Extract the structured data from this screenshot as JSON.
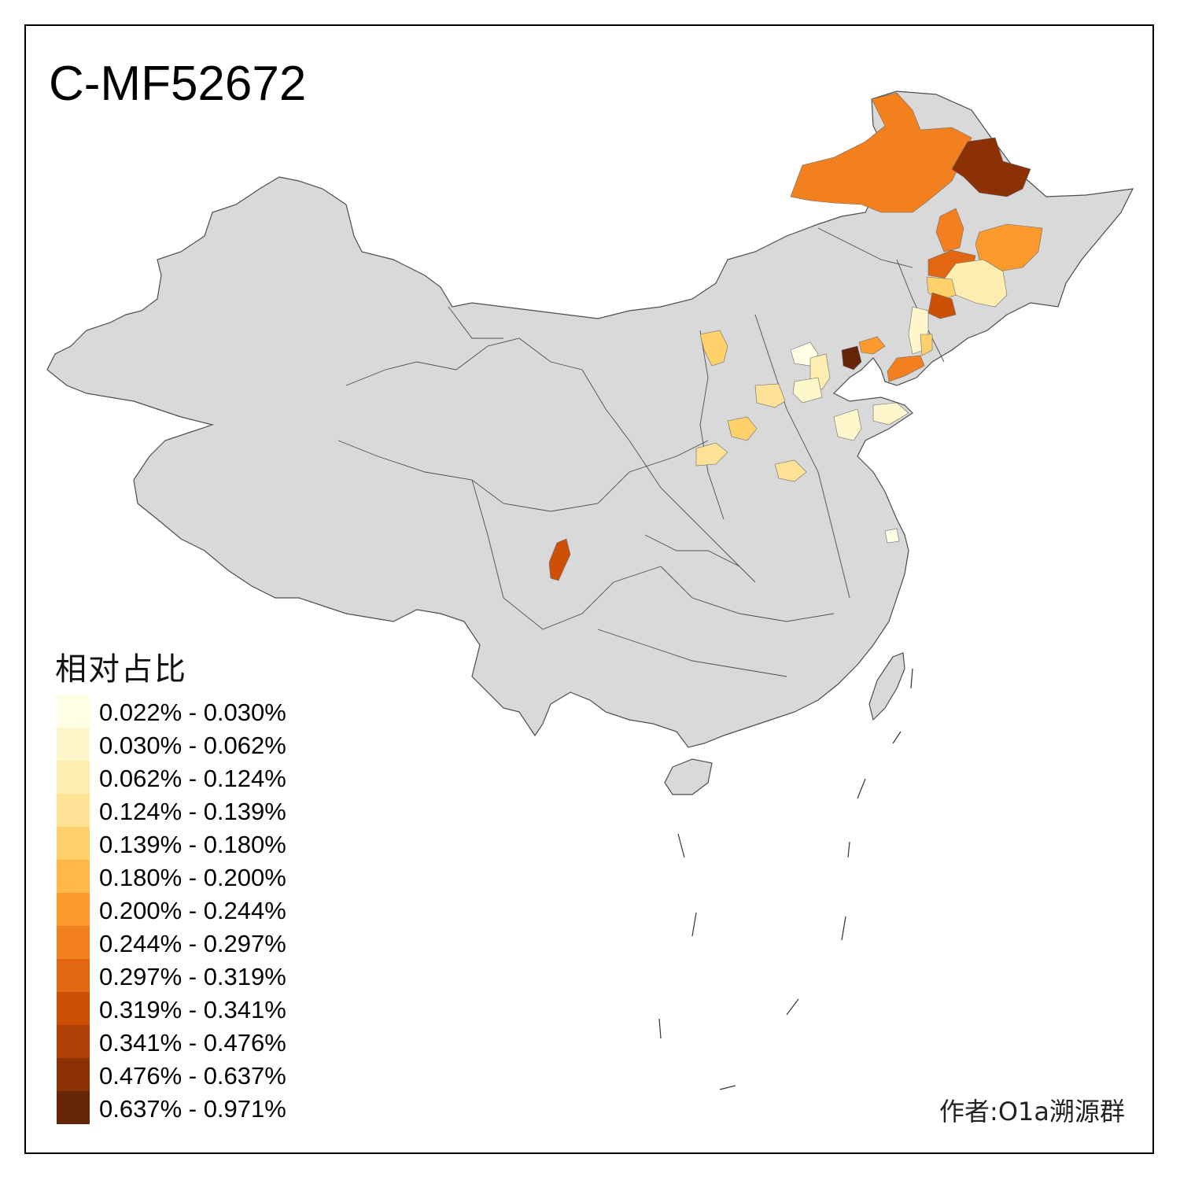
{
  "title": "C-MF52672",
  "legend": {
    "title": "相对占比",
    "items": [
      {
        "label": "0.022% - 0.030%",
        "color": "#FFFFE5"
      },
      {
        "label": "0.030% - 0.062%",
        "color": "#FFF7CC"
      },
      {
        "label": "0.062% - 0.124%",
        "color": "#FEEDB0"
      },
      {
        "label": "0.124% - 0.139%",
        "color": "#FEE296"
      },
      {
        "label": "0.139% - 0.180%",
        "color": "#FED16B"
      },
      {
        "label": "0.180% - 0.200%",
        "color": "#FEB748"
      },
      {
        "label": "0.200% - 0.244%",
        "color": "#FC9A2E"
      },
      {
        "label": "0.244% - 0.297%",
        "color": "#F3801F"
      },
      {
        "label": "0.297% - 0.319%",
        "color": "#E36712"
      },
      {
        "label": "0.319% - 0.341%",
        "color": "#CE5007"
      },
      {
        "label": "0.341% - 0.476%",
        "color": "#AF3F04"
      },
      {
        "label": "0.476% - 0.637%",
        "color": "#8B3104"
      },
      {
        "label": "0.637% - 0.971%",
        "color": "#662506"
      }
    ]
  },
  "author": "作者:O1a溯源群",
  "colors": {
    "base_fill": "#D9D9D9",
    "border": "#4D4D4D"
  }
}
